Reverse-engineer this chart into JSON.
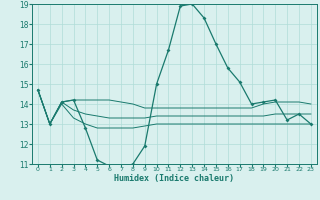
{
  "xlabel": "Humidex (Indice chaleur)",
  "x": [
    0,
    1,
    2,
    3,
    4,
    5,
    6,
    7,
    8,
    9,
    10,
    11,
    12,
    13,
    14,
    15,
    16,
    17,
    18,
    19,
    20,
    21,
    22,
    23
  ],
  "y_main": [
    14.7,
    13.0,
    14.1,
    14.2,
    12.8,
    11.2,
    10.9,
    10.8,
    11.0,
    11.9,
    15.0,
    16.7,
    18.9,
    19.0,
    18.3,
    17.0,
    15.8,
    15.1,
    14.0,
    14.1,
    14.2,
    13.2,
    13.5,
    13.0
  ],
  "y_upper": [
    14.7,
    13.0,
    14.1,
    14.2,
    14.2,
    14.2,
    14.2,
    14.1,
    14.0,
    13.8,
    13.8,
    13.8,
    13.8,
    13.8,
    13.8,
    13.8,
    13.8,
    13.8,
    13.8,
    14.0,
    14.1,
    14.1,
    14.1,
    14.0
  ],
  "y_lower": [
    14.7,
    13.0,
    14.0,
    13.3,
    13.0,
    12.8,
    12.8,
    12.8,
    12.8,
    12.9,
    13.0,
    13.0,
    13.0,
    13.0,
    13.0,
    13.0,
    13.0,
    13.0,
    13.0,
    13.0,
    13.0,
    13.0,
    13.0,
    13.0
  ],
  "y_avg": [
    14.7,
    13.0,
    14.1,
    13.7,
    13.5,
    13.4,
    13.3,
    13.3,
    13.3,
    13.3,
    13.4,
    13.4,
    13.4,
    13.4,
    13.4,
    13.4,
    13.4,
    13.4,
    13.4,
    13.4,
    13.5,
    13.5,
    13.5,
    13.5
  ],
  "line_color": "#1a7a6e",
  "bg_color": "#d9f0ee",
  "grid_color": "#b0ddd8",
  "ylim": [
    11,
    19
  ],
  "yticks": [
    11,
    12,
    13,
    14,
    15,
    16,
    17,
    18,
    19
  ],
  "xlim": [
    -0.5,
    23.5
  ],
  "xticks": [
    0,
    1,
    2,
    3,
    4,
    5,
    6,
    7,
    8,
    9,
    10,
    11,
    12,
    13,
    14,
    15,
    16,
    17,
    18,
    19,
    20,
    21,
    22,
    23
  ]
}
